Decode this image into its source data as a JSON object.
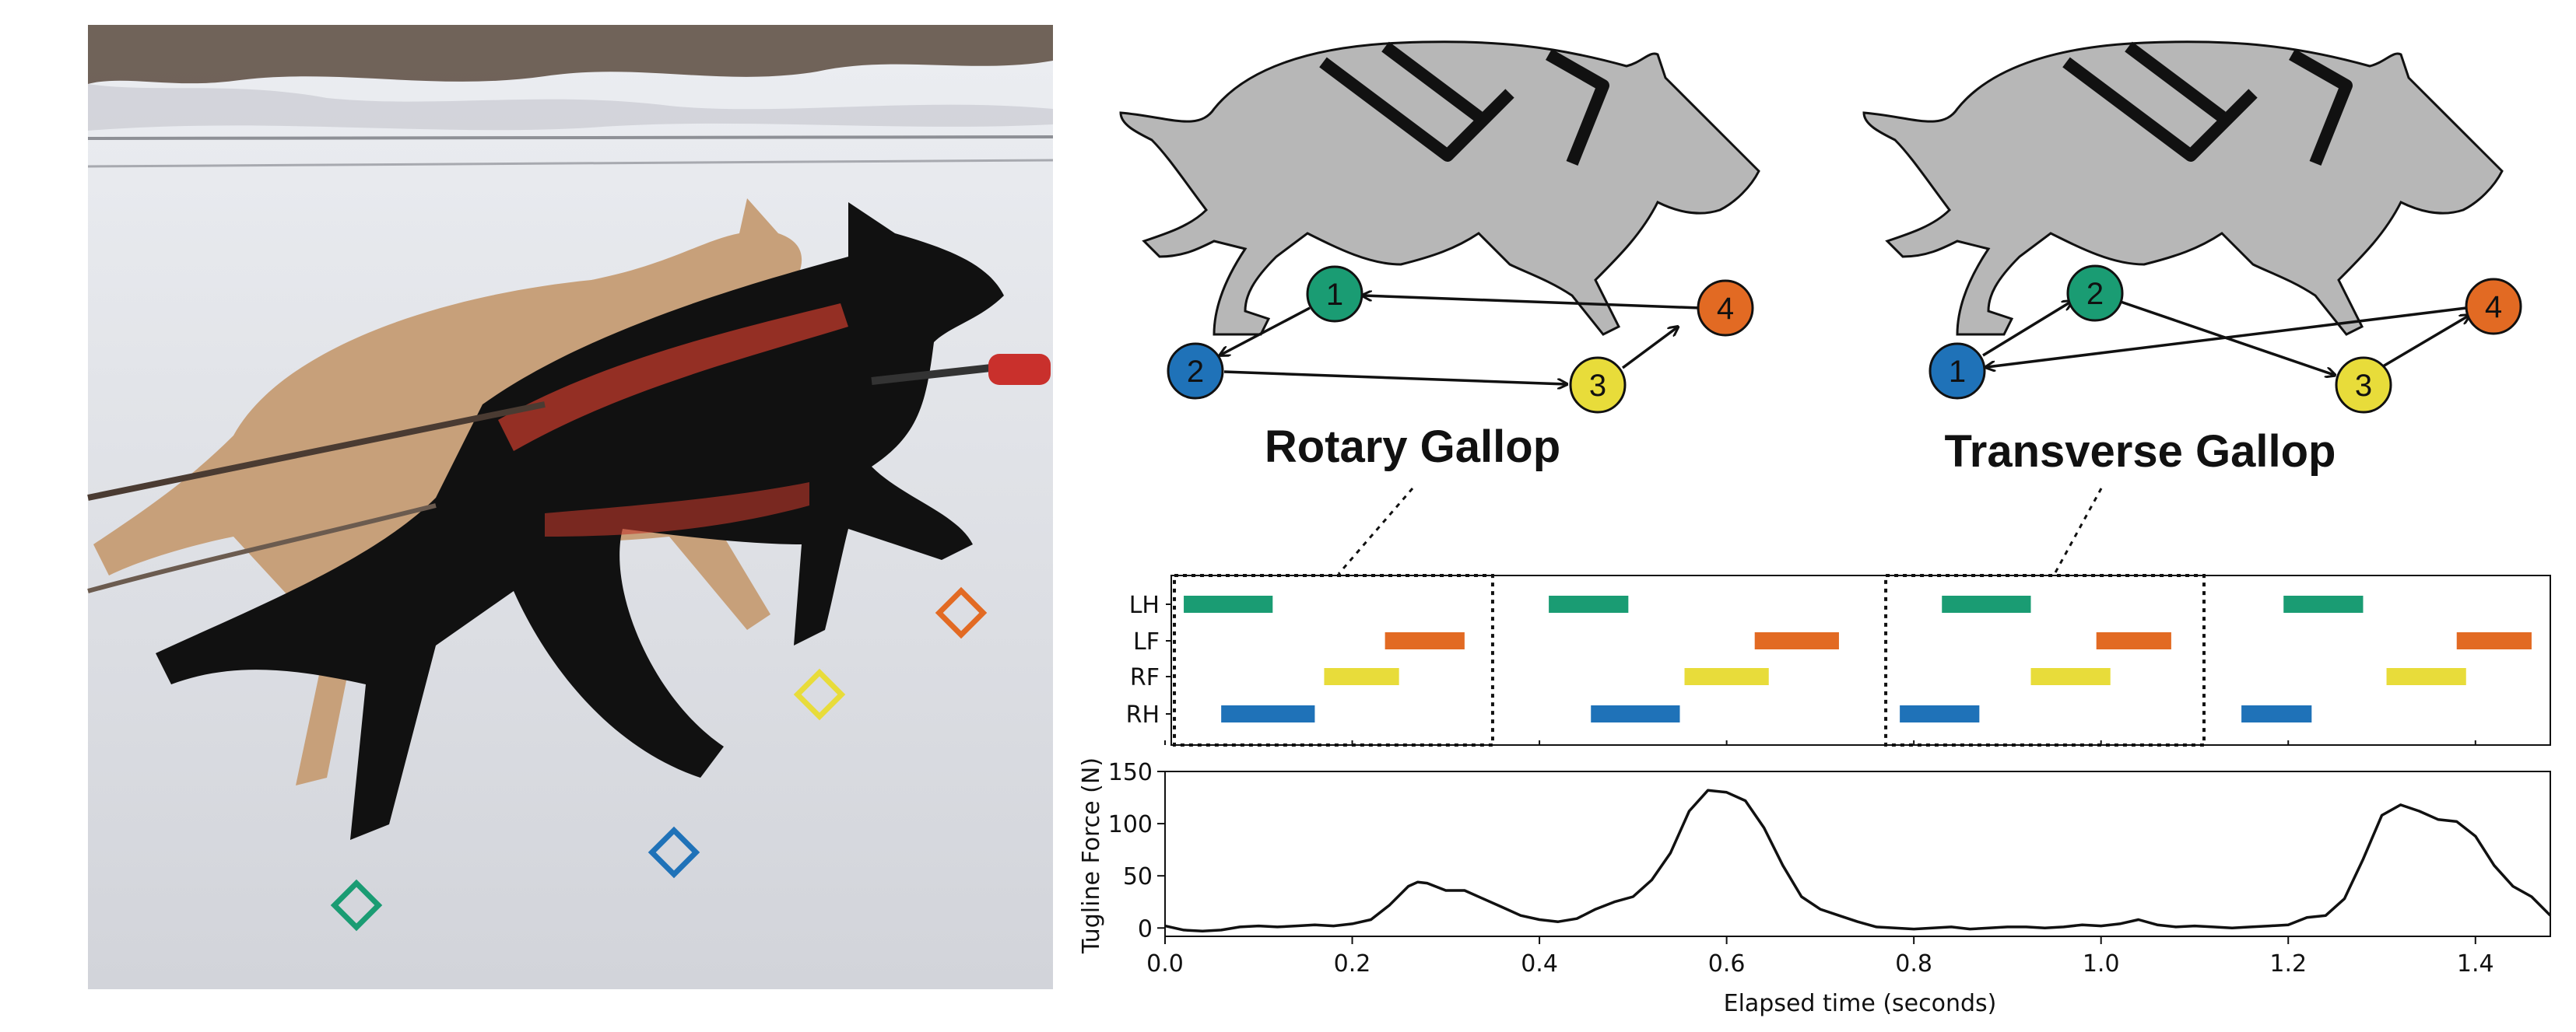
{
  "photo": {
    "markers": [
      {
        "color": "#1a9c73",
        "name": "marker-green"
      },
      {
        "color": "#e26a23",
        "name": "marker-orange"
      },
      {
        "color": "#e8dc3a",
        "name": "marker-yellow"
      },
      {
        "color": "#1f72b8",
        "name": "marker-blue"
      }
    ]
  },
  "gaits": [
    {
      "title": "Rotary Gallop",
      "nodes": [
        {
          "label": "1",
          "color": "#1a9c73"
        },
        {
          "label": "2",
          "color": "#1f72b8"
        },
        {
          "label": "3",
          "color": "#e8dc3a"
        },
        {
          "label": "4",
          "color": "#e26a23"
        }
      ]
    },
    {
      "title": "Transverse Gallop",
      "nodes": [
        {
          "label": "1",
          "color": "#1f72b8"
        },
        {
          "label": "2",
          "color": "#1a9c73"
        },
        {
          "label": "3",
          "color": "#e8dc3a"
        },
        {
          "label": "4",
          "color": "#e26a23"
        }
      ]
    }
  ],
  "chart_data": [
    {
      "type": "gantt",
      "rows": [
        "LH",
        "LF",
        "RF",
        "RH"
      ],
      "colors": {
        "LH": "#1a9c73",
        "LF": "#e26a23",
        "RF": "#e8dc3a",
        "RH": "#1f72b8"
      },
      "xlim": [
        0,
        1.48
      ],
      "stances": {
        "LH": [
          [
            0.02,
            0.115
          ],
          [
            0.41,
            0.495
          ],
          [
            0.83,
            0.925
          ],
          [
            1.195,
            1.28
          ]
        ],
        "LF": [
          [
            0.235,
            0.32
          ],
          [
            0.63,
            0.72
          ],
          [
            0.995,
            1.075
          ],
          [
            1.38,
            1.46
          ]
        ],
        "RF": [
          [
            0.17,
            0.25
          ],
          [
            0.555,
            0.645
          ],
          [
            0.925,
            1.01
          ],
          [
            1.305,
            1.39
          ]
        ],
        "RH": [
          [
            0.06,
            0.16
          ],
          [
            0.455,
            0.55
          ],
          [
            0.785,
            0.87
          ],
          [
            1.15,
            1.225
          ]
        ]
      },
      "boxes": [
        [
          0.01,
          0.35
        ],
        [
          0.77,
          1.11
        ]
      ]
    },
    {
      "type": "line",
      "xlabel": "Elapsed time (seconds)",
      "ylabel": "Tugline Force (N)",
      "xlim": [
        0,
        1.48
      ],
      "ylim": [
        -8,
        150
      ],
      "xticks": [
        0.0,
        0.2,
        0.4,
        0.6,
        0.8,
        1.0,
        1.2,
        1.4
      ],
      "xtick_labels": [
        "0.0",
        "0.2",
        "0.4",
        "0.6",
        "0.8",
        "1.0",
        "1.2",
        "1.4"
      ],
      "yticks": [
        0,
        50,
        100,
        150
      ],
      "ytick_labels": [
        "0",
        "50",
        "100",
        "150"
      ],
      "x": [
        0.0,
        0.02,
        0.04,
        0.06,
        0.08,
        0.1,
        0.12,
        0.14,
        0.16,
        0.18,
        0.2,
        0.22,
        0.24,
        0.26,
        0.27,
        0.28,
        0.3,
        0.32,
        0.34,
        0.36,
        0.38,
        0.4,
        0.42,
        0.44,
        0.46,
        0.48,
        0.5,
        0.52,
        0.54,
        0.56,
        0.58,
        0.6,
        0.62,
        0.64,
        0.66,
        0.68,
        0.7,
        0.72,
        0.74,
        0.76,
        0.78,
        0.8,
        0.82,
        0.84,
        0.86,
        0.88,
        0.9,
        0.92,
        0.94,
        0.96,
        0.98,
        1.0,
        1.02,
        1.04,
        1.06,
        1.08,
        1.1,
        1.12,
        1.14,
        1.16,
        1.18,
        1.2,
        1.22,
        1.24,
        1.26,
        1.28,
        1.3,
        1.32,
        1.34,
        1.36,
        1.38,
        1.4,
        1.42,
        1.44,
        1.46,
        1.48
      ],
      "y": [
        2,
        -2,
        -3,
        -2,
        1,
        2,
        1,
        2,
        3,
        2,
        4,
        8,
        22,
        40,
        44,
        43,
        36,
        36,
        28,
        20,
        12,
        8,
        6,
        9,
        18,
        25,
        30,
        46,
        72,
        112,
        132,
        130,
        122,
        96,
        60,
        30,
        18,
        12,
        6,
        1,
        0,
        -1,
        0,
        1,
        -1,
        0,
        1,
        1,
        0,
        1,
        3,
        2,
        4,
        8,
        3,
        1,
        2,
        1,
        0,
        1,
        2,
        3,
        10,
        12,
        28,
        66,
        108,
        118,
        112,
        104,
        102,
        88,
        60,
        40,
        30,
        12
      ]
    }
  ]
}
